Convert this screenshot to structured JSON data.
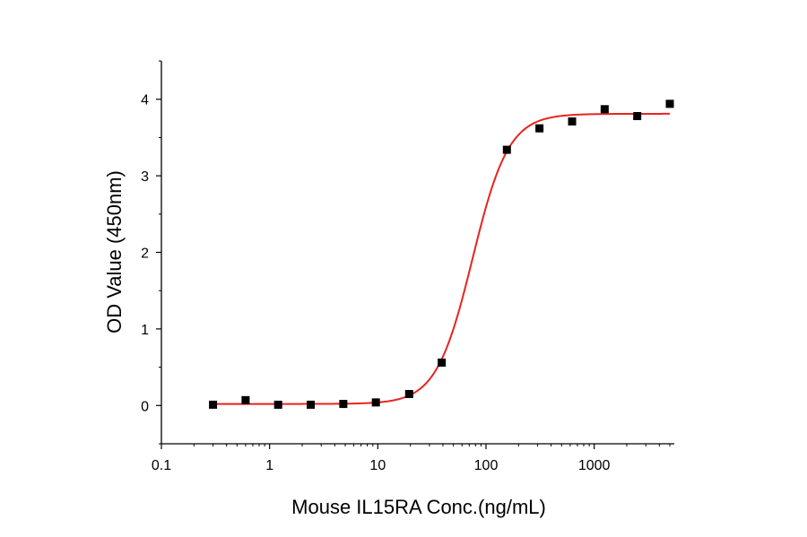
{
  "chart_data": {
    "type": "scatter",
    "title": "",
    "xlabel": "Mouse IL15RA Conc.(ng/mL)",
    "ylabel": "OD Value (450nm)",
    "xscale": "log",
    "xlim": [
      0.1,
      5500
    ],
    "ylim": [
      -0.5,
      4.5
    ],
    "xticks": [
      0.1,
      1,
      10,
      100,
      1000
    ],
    "xtick_labels": [
      "0.1",
      "1",
      "10",
      "100",
      "1000"
    ],
    "yticks": [
      0,
      1,
      2,
      3,
      4
    ],
    "ytick_labels": [
      "0",
      "1",
      "2",
      "3",
      "4"
    ],
    "grid": false,
    "legend": "none",
    "series": [
      {
        "marker": "square",
        "color": "#000000",
        "x": [
          0.3,
          0.6,
          1.2,
          2.4,
          4.8,
          9.6,
          19.5,
          39,
          156,
          312,
          625,
          1250,
          2500,
          5000
        ],
        "y": [
          0.01,
          0.07,
          0.01,
          0.01,
          0.02,
          0.04,
          0.15,
          0.56,
          3.34,
          3.62,
          3.71,
          3.87,
          3.78,
          3.94
        ]
      }
    ],
    "fit_curve": {
      "model": "4PL",
      "color": "#e8231e",
      "bottom": 0.02,
      "top": 3.81,
      "ec50": 75,
      "hill": 2.6
    }
  }
}
